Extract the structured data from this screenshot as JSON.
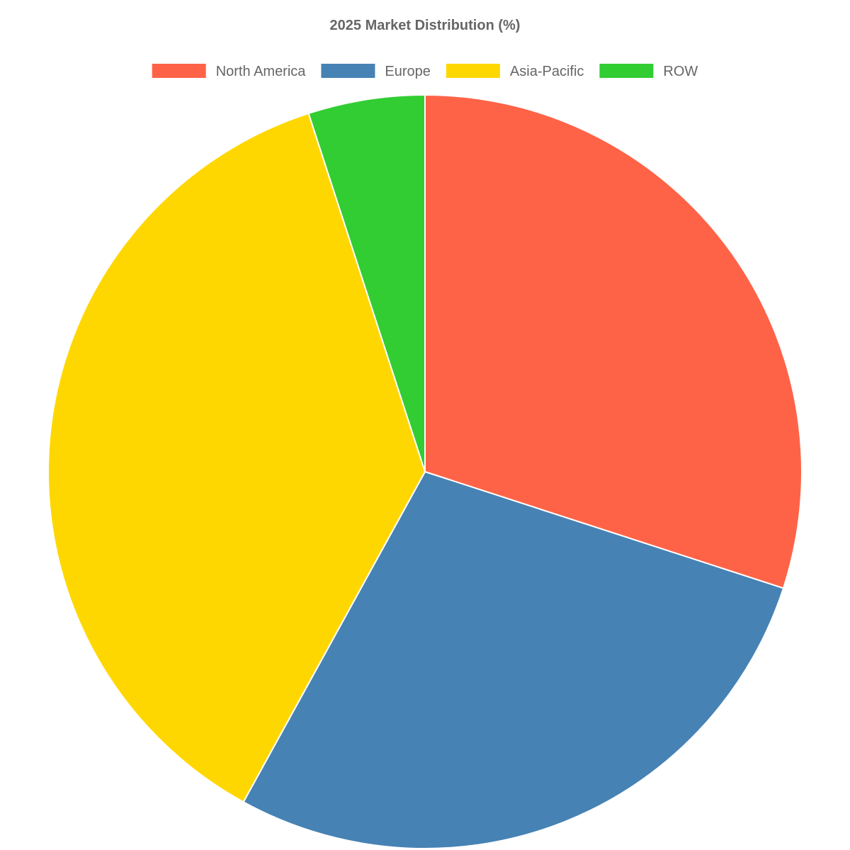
{
  "chart_data": {
    "type": "pie",
    "title": "2025 Market Distribution (%)",
    "legend_position": "top",
    "slices": [
      {
        "label": "North America",
        "value": 30,
        "color": "#ff6347"
      },
      {
        "label": "Europe",
        "value": 28,
        "color": "#4682b4"
      },
      {
        "label": "Asia-Pacific",
        "value": 37,
        "color": "#ffd700"
      },
      {
        "label": "ROW",
        "value": 5,
        "color": "#32cd32"
      }
    ]
  }
}
